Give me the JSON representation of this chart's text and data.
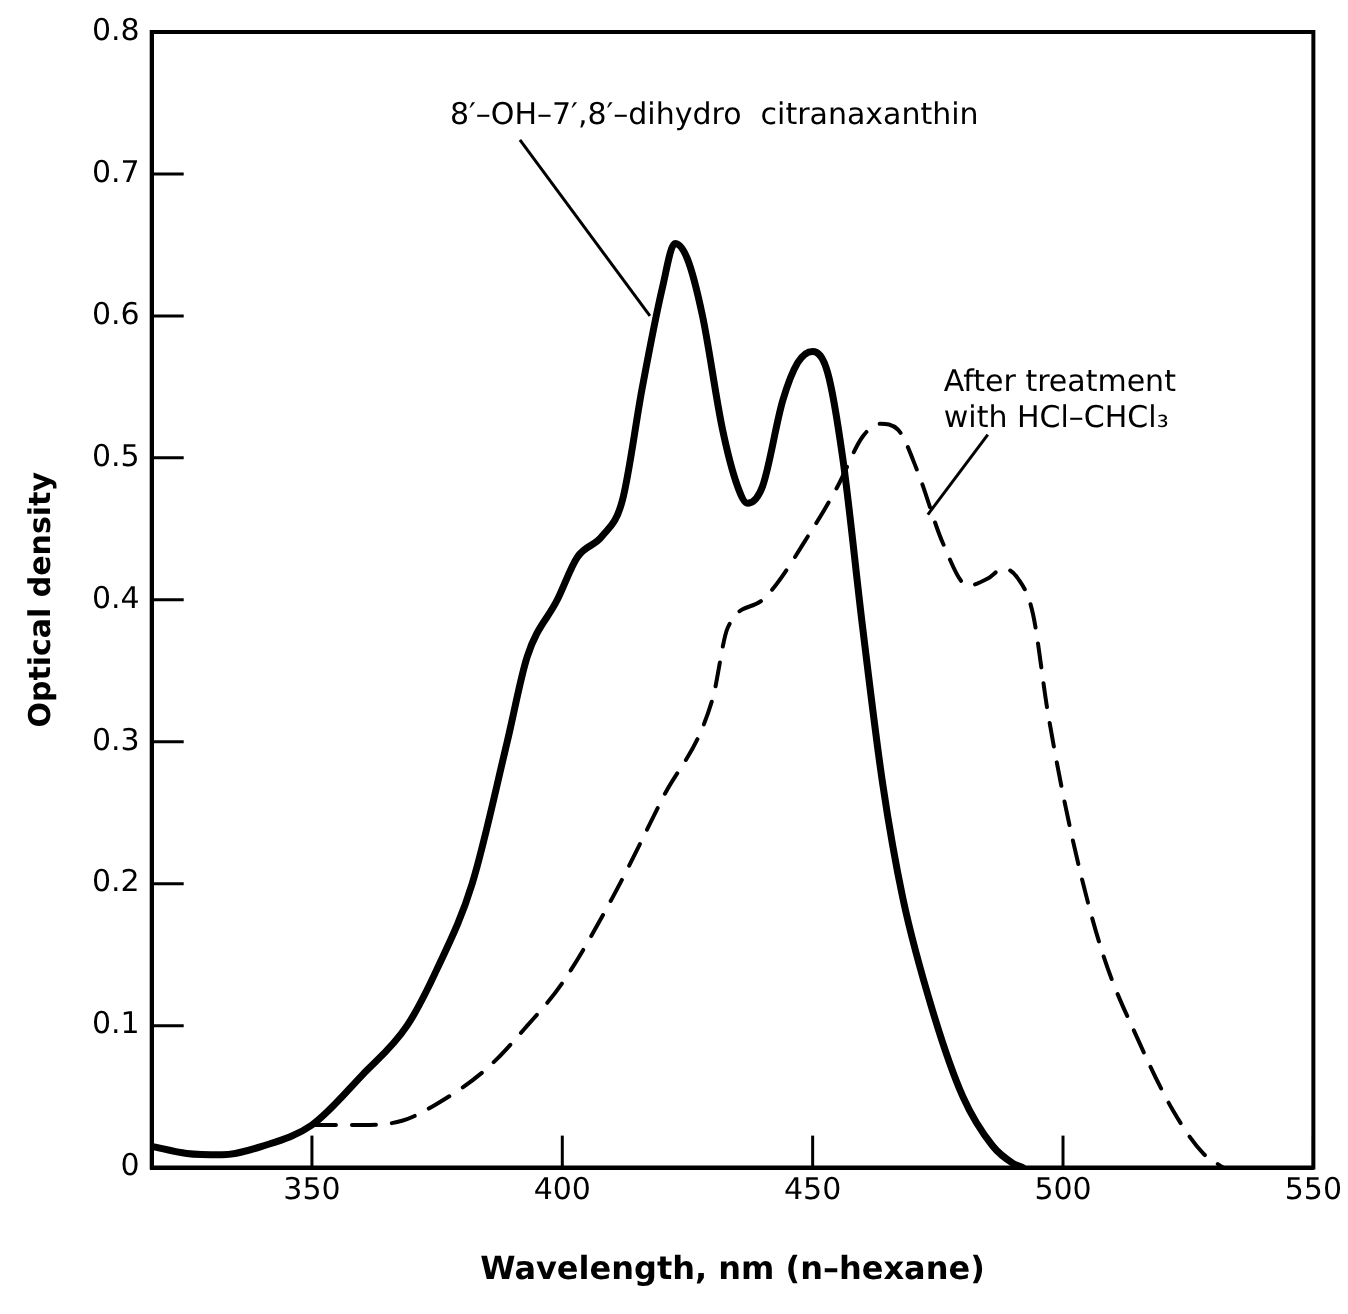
{
  "chart_data": {
    "type": "line",
    "xlabel": "Wavelength, nm (n–hexane)",
    "ylabel": "Optical density",
    "xlim": [
      318,
      550
    ],
    "xticks": [
      350,
      400,
      450,
      500,
      550
    ],
    "ylim": [
      0,
      0.8
    ],
    "yticks": [
      0,
      0.1,
      0.2,
      0.3,
      0.4,
      0.5,
      0.6,
      0.7,
      0.8
    ],
    "grid": false,
    "legend": false,
    "marker": "none",
    "series": [
      {
        "color": "#000000",
        "line_style": "solid",
        "x": [
          318,
          325,
          332,
          340,
          350,
          360,
          369,
          375,
          382,
          389,
          393,
          399,
          403,
          408,
          412,
          416,
          420,
          422.5,
          425,
          428,
          432,
          435,
          437,
          440,
          444,
          447,
          450,
          453,
          456,
          460,
          464,
          468,
          474,
          480,
          486,
          490,
          492
        ],
        "values": [
          0.015,
          0.01,
          0.009,
          0.015,
          0.03,
          0.065,
          0.1,
          0.14,
          0.2,
          0.3,
          0.36,
          0.4,
          0.43,
          0.445,
          0.47,
          0.55,
          0.62,
          0.651,
          0.64,
          0.6,
          0.52,
          0.48,
          0.468,
          0.48,
          0.54,
          0.567,
          0.575,
          0.56,
          0.5,
          0.38,
          0.27,
          0.19,
          0.11,
          0.05,
          0.015,
          0.003,
          0
        ]
      },
      {
        "color": "#000000",
        "line_style": "dashed",
        "x": [
          350,
          360,
          368,
          375,
          385,
          393,
          400,
          410,
          420,
          430,
          433,
          440,
          450,
          455,
          460,
          463.5,
          467,
          471,
          476,
          481,
          485,
          488,
          491,
          494,
          497,
          502,
          508,
          515,
          522,
          528,
          532
        ],
        "values": [
          0.03,
          0.03,
          0.033,
          0.045,
          0.07,
          0.1,
          0.13,
          0.19,
          0.26,
          0.33,
          0.38,
          0.4,
          0.45,
          0.48,
          0.515,
          0.524,
          0.52,
          0.49,
          0.44,
          0.41,
          0.415,
          0.422,
          0.415,
          0.39,
          0.32,
          0.23,
          0.15,
          0.09,
          0.04,
          0.01,
          0
        ]
      }
    ],
    "annotations": [
      {
        "text": "8′–OH–7′,8′–dihydro  citranaxanthin",
        "x": 417.5,
        "y": 0.6
      },
      {
        "text": "After treatment\nwith HCl–CHCl₃",
        "x": 473,
        "y": 0.46
      }
    ]
  }
}
